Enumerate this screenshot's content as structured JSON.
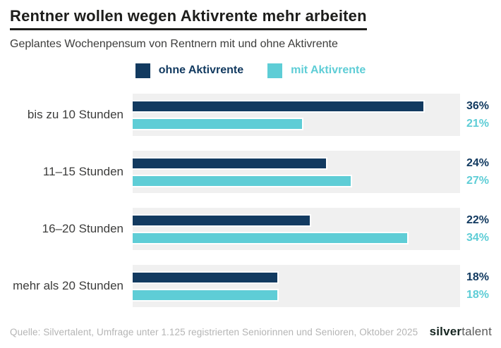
{
  "title": "Rentner wollen wegen Aktivrente mehr arbeiten",
  "subtitle": "Geplantes Wochenpensum von Rentnern mit und ohne Aktivrente",
  "legend": [
    {
      "label": "ohne Aktivrente",
      "color": "#123a60"
    },
    {
      "label": "mit Aktivrente",
      "color": "#5ecdd6"
    }
  ],
  "chart_data": {
    "type": "bar",
    "orientation": "horizontal",
    "title": "Rentner wollen wegen Aktivrente mehr arbeiten",
    "subtitle": "Geplantes Wochenpensum von Rentnern mit und ohne Aktivrente",
    "categories": [
      "bis zu 10 Stunden",
      "11–15 Stunden",
      "16–20 Stunden",
      "mehr als 20 Stunden"
    ],
    "series": [
      {
        "name": "ohne Aktivrente",
        "color": "#123a60",
        "values": [
          36,
          24,
          22,
          18
        ]
      },
      {
        "name": "mit Aktivrente",
        "color": "#5ecdd6",
        "values": [
          21,
          27,
          34,
          18
        ]
      }
    ],
    "unit": "%",
    "xlim": [
      0,
      40.3
    ],
    "value_labels": true,
    "track_color": "#f0f0f0",
    "legend_position": "top-center",
    "grid": false
  },
  "footer": {
    "source": "Quelle: Silvertalent, Umfrage unter 1.125 registrierten Seniorinnen und Senioren, Oktober 2025",
    "logo": {
      "bold": "silver",
      "regular": "talent"
    }
  }
}
